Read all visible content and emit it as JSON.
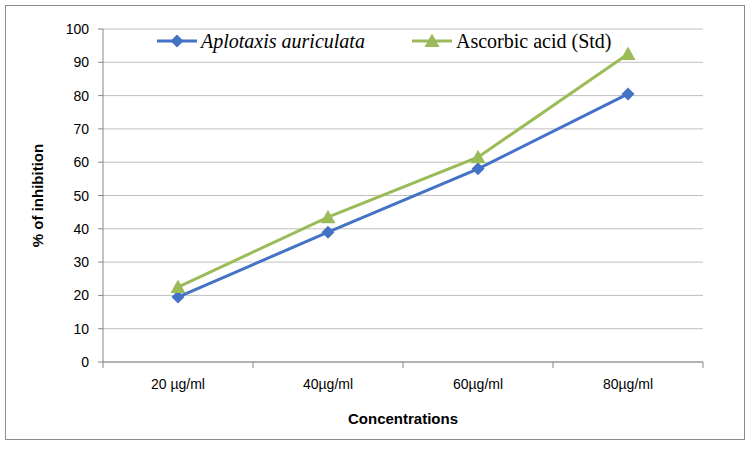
{
  "chart_data": {
    "type": "line",
    "x_label": "Concentrations",
    "y_label": "% of inhibition",
    "categories": [
      "20 µg/ml",
      "40µg/ml",
      "60µg/ml",
      "80µg/ml"
    ],
    "series": [
      {
        "name": "Aplotaxis auriculata",
        "color": "#4472c4",
        "marker": "diamond",
        "values": [
          19.5,
          39,
          58,
          80.5
        ]
      },
      {
        "name": "Ascorbic acid (Std)",
        "color": "#9bbb59",
        "marker": "triangle",
        "values": [
          22.5,
          43.5,
          61.5,
          92.5
        ]
      }
    ],
    "ylim": [
      0,
      100
    ],
    "yticks": [
      0,
      10,
      20,
      30,
      40,
      50,
      60,
      70,
      80,
      90,
      100
    ],
    "grid": true,
    "legend": "top"
  }
}
